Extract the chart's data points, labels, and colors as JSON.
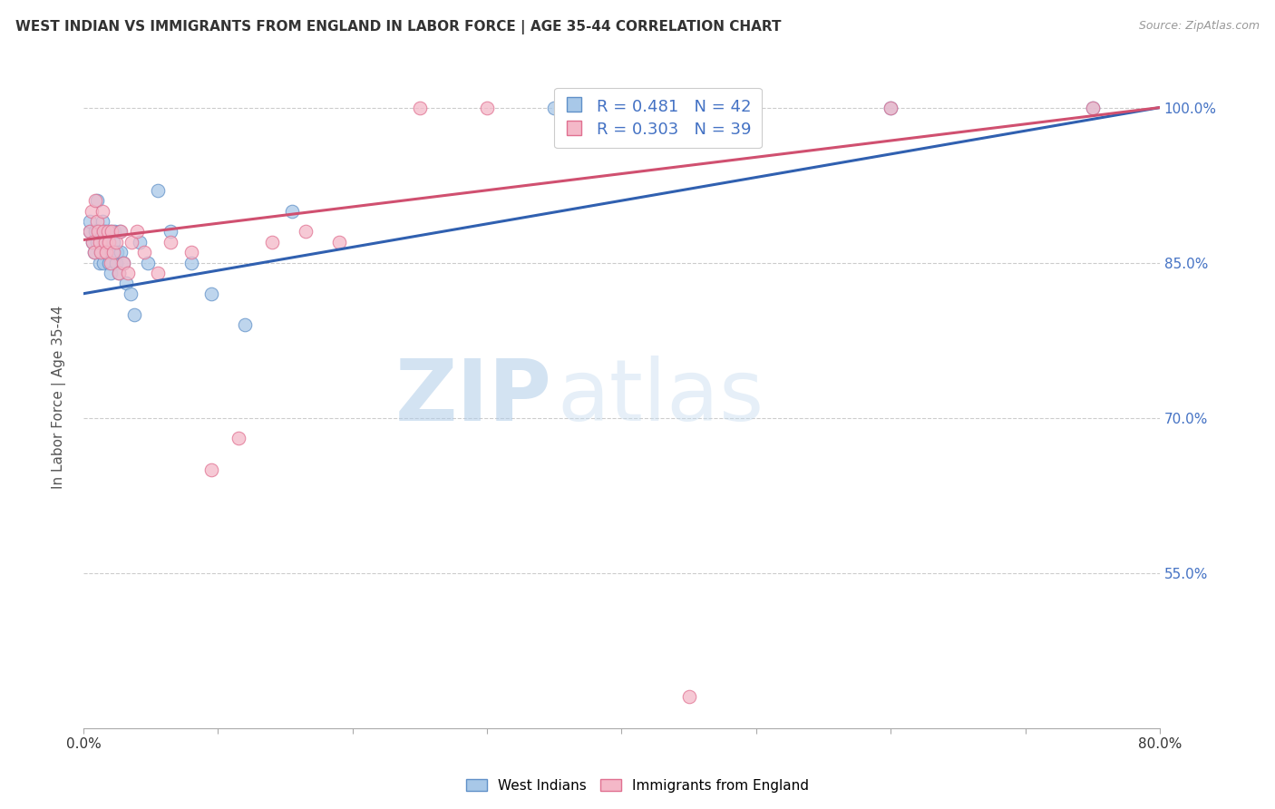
{
  "title": "WEST INDIAN VS IMMIGRANTS FROM ENGLAND IN LABOR FORCE | AGE 35-44 CORRELATION CHART",
  "source": "Source: ZipAtlas.com",
  "ylabel": "In Labor Force | Age 35-44",
  "ytick_labels": [
    "100.0%",
    "85.0%",
    "70.0%",
    "55.0%"
  ],
  "xlim": [
    0.0,
    0.8
  ],
  "ylim": [
    0.4,
    1.04
  ],
  "yticks": [
    1.0,
    0.85,
    0.7,
    0.55
  ],
  "legend_blue_label": "West Indians",
  "legend_pink_label": "Immigrants from England",
  "r_blue": 0.481,
  "n_blue": 42,
  "r_pink": 0.303,
  "n_pink": 39,
  "blue_color": "#a8c8e8",
  "pink_color": "#f4b8c8",
  "blue_edge_color": "#6090c8",
  "pink_edge_color": "#e07090",
  "blue_line_color": "#3060b0",
  "pink_line_color": "#d05070",
  "watermark_zip": "ZIP",
  "watermark_atlas": "atlas",
  "west_indian_x": [
    0.005,
    0.005,
    0.007,
    0.008,
    0.009,
    0.01,
    0.01,
    0.012,
    0.012,
    0.013,
    0.014,
    0.015,
    0.015,
    0.016,
    0.017,
    0.018,
    0.019,
    0.02,
    0.02,
    0.021,
    0.022,
    0.023,
    0.024,
    0.025,
    0.026,
    0.027,
    0.028,
    0.03,
    0.032,
    0.035,
    0.038,
    0.042,
    0.048,
    0.055,
    0.065,
    0.08,
    0.095,
    0.12,
    0.155,
    0.35,
    0.6,
    0.75
  ],
  "west_indian_y": [
    0.88,
    0.89,
    0.87,
    0.86,
    0.88,
    0.87,
    0.91,
    0.85,
    0.88,
    0.86,
    0.89,
    0.85,
    0.87,
    0.88,
    0.86,
    0.87,
    0.85,
    0.84,
    0.88,
    0.86,
    0.87,
    0.88,
    0.85,
    0.86,
    0.84,
    0.88,
    0.86,
    0.85,
    0.83,
    0.82,
    0.8,
    0.87,
    0.85,
    0.92,
    0.88,
    0.85,
    0.82,
    0.79,
    0.9,
    1.0,
    1.0,
    1.0
  ],
  "england_x": [
    0.005,
    0.006,
    0.007,
    0.008,
    0.009,
    0.01,
    0.011,
    0.012,
    0.013,
    0.014,
    0.015,
    0.016,
    0.017,
    0.018,
    0.019,
    0.02,
    0.021,
    0.022,
    0.024,
    0.026,
    0.028,
    0.03,
    0.033,
    0.036,
    0.04,
    0.045,
    0.055,
    0.065,
    0.08,
    0.095,
    0.115,
    0.14,
    0.165,
    0.19,
    0.25,
    0.3,
    0.45,
    0.6,
    0.75
  ],
  "england_y": [
    0.88,
    0.9,
    0.87,
    0.86,
    0.91,
    0.89,
    0.88,
    0.87,
    0.86,
    0.9,
    0.88,
    0.87,
    0.86,
    0.88,
    0.87,
    0.85,
    0.88,
    0.86,
    0.87,
    0.84,
    0.88,
    0.85,
    0.84,
    0.87,
    0.88,
    0.86,
    0.84,
    0.87,
    0.86,
    0.65,
    0.68,
    0.87,
    0.88,
    0.87,
    1.0,
    1.0,
    0.43,
    1.0,
    1.0
  ],
  "blue_line_x0": 0.0,
  "blue_line_y0": 0.82,
  "blue_line_x1": 0.8,
  "blue_line_y1": 1.0,
  "pink_line_x0": 0.0,
  "pink_line_y0": 0.872,
  "pink_line_x1": 0.8,
  "pink_line_y1": 1.0
}
